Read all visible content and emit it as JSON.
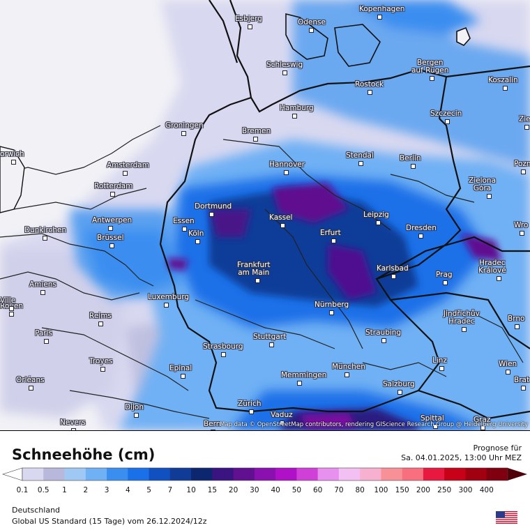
{
  "map": {
    "region": "Deutschland",
    "attribution": "Map data © OpenStreetMap contributors, rendering GIScience Research Group @ Heidelberg University",
    "cities": [
      {
        "name": "Esbjerg"
      },
      {
        "name": "Odense"
      },
      {
        "name": "Kopenhagen"
      },
      {
        "name": "Schleswig"
      },
      {
        "name": "Bergen\nauf Rügen"
      },
      {
        "name": "Rostock"
      },
      {
        "name": "Koszalin"
      },
      {
        "name": "Hamburg"
      },
      {
        "name": "Szczecin"
      },
      {
        "name": "Groningen"
      },
      {
        "name": "Bremen"
      },
      {
        "name": "orwich"
      },
      {
        "name": "Stendal"
      },
      {
        "name": "Berlin"
      },
      {
        "name": "Amsterdam"
      },
      {
        "name": "Hannover"
      },
      {
        "name": "Pozn"
      },
      {
        "name": "Rotterdam"
      },
      {
        "name": "Zielona\nGóra"
      },
      {
        "name": "Dortmund"
      },
      {
        "name": "Antwerpen"
      },
      {
        "name": "Essen"
      },
      {
        "name": "Kassel"
      },
      {
        "name": "Leipzig"
      },
      {
        "name": "Wro"
      },
      {
        "name": "Dunkirchen"
      },
      {
        "name": "Köln"
      },
      {
        "name": "Erfurt"
      },
      {
        "name": "Dresden"
      },
      {
        "name": "Brüssel"
      },
      {
        "name": "Frankfurt\nam Main"
      },
      {
        "name": "Karlsbad"
      },
      {
        "name": "Hradec\nKrálové"
      },
      {
        "name": "Amiens"
      },
      {
        "name": "Prag"
      },
      {
        "name": "Luxemburg"
      },
      {
        "name": "Rouen"
      },
      {
        "name": "Nürnberg"
      },
      {
        "name": "Jindřichův\nHradec"
      },
      {
        "name": "Reims"
      },
      {
        "name": "Brno"
      },
      {
        "name": "Paris"
      },
      {
        "name": "Straubing"
      },
      {
        "name": "Stuttgart"
      },
      {
        "name": "Strasbourg"
      },
      {
        "name": "Troyes"
      },
      {
        "name": "Linz"
      },
      {
        "name": "Wien"
      },
      {
        "name": "Epinal"
      },
      {
        "name": "München"
      },
      {
        "name": "Orléans"
      },
      {
        "name": "Memmingen"
      },
      {
        "name": "Salzburg"
      },
      {
        "name": "Brat"
      },
      {
        "name": "Dijon"
      },
      {
        "name": "Zürich"
      },
      {
        "name": "Vaduz"
      },
      {
        "name": "Nevers"
      },
      {
        "name": "Bern"
      },
      {
        "name": "Spittal"
      },
      {
        "name": "Graz"
      },
      {
        "name": "Zie"
      },
      {
        "name": "Ville"
      }
    ]
  },
  "legend": {
    "title": "Schneehöhe (cm)",
    "forecast_label": "Prognose für",
    "forecast_time": "Sa. 04.01.2025, 13:00 Uhr MEZ",
    "ticks": [
      "0.1",
      "0.5",
      "1",
      "2",
      "3",
      "4",
      "5",
      "7",
      "10",
      "15",
      "20",
      "30",
      "40",
      "50",
      "60",
      "70",
      "80",
      "100",
      "150",
      "200",
      "250",
      "300",
      "400"
    ],
    "colors": [
      "#d8d8f0",
      "#b8b8dc",
      "#a0c8f4",
      "#70b0f4",
      "#3a8ef0",
      "#1a70e8",
      "#1050c0",
      "#103c98",
      "#0c2670",
      "#3a1480",
      "#601090",
      "#8a10b0",
      "#b010c8",
      "#d040d8",
      "#e890f0",
      "#f4c0f4",
      "#f8b0d0",
      "#f89098",
      "#f87080",
      "#e81840",
      "#c80018",
      "#a00010",
      "#800010",
      "#500008"
    ],
    "region": "Deutschland",
    "model_line": "Global US Standard (15 Tage) vom  26.12.2024/12z"
  },
  "flag": {
    "name": "us-flag-icon"
  }
}
